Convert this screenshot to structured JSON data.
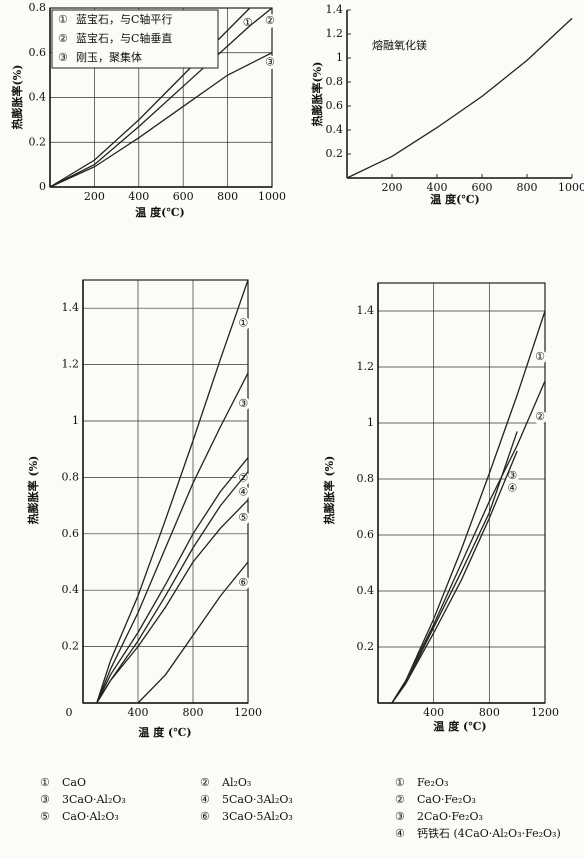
{
  "chart_data": [
    {
      "type": "line",
      "ylabel": "热膨胀率(%)",
      "xlabel": "温 度(℃)",
      "x": [
        0,
        200,
        400,
        600,
        800,
        900,
        1000
      ],
      "xlim": [
        0,
        1000
      ],
      "ylim": [
        0,
        0.8
      ],
      "xticks": [
        200,
        400,
        600,
        800,
        1000
      ],
      "yticks": [
        0,
        0.2,
        0.4,
        0.6,
        0.8
      ],
      "grid": true,
      "series": [
        {
          "label": "①",
          "name": "蓝宝石，与C轴平行",
          "color": "#222",
          "values": [
            0,
            0.12,
            0.3,
            0.5,
            0.7,
            0.8,
            null
          ]
        },
        {
          "label": "②",
          "name": "蓝宝石，与C轴垂直",
          "color": "#222",
          "values": [
            0,
            0.1,
            0.27,
            0.45,
            0.63,
            0.72,
            0.8
          ]
        },
        {
          "label": "③",
          "name": "刚玉，聚集体",
          "color": "#222",
          "values": [
            0,
            0.09,
            0.22,
            0.36,
            0.5,
            0.55,
            0.6
          ]
        }
      ]
    },
    {
      "type": "line",
      "ylabel": "热膨胀率(%)",
      "xlabel": "温 度(℃)",
      "x": [
        0,
        200,
        400,
        600,
        800,
        1000
      ],
      "xlim": [
        0,
        1000
      ],
      "ylim": [
        0,
        1.4
      ],
      "xticks": [
        200,
        400,
        600,
        800,
        1000
      ],
      "yticks": [
        0.2,
        0.4,
        0.6,
        0.8,
        1.0,
        1.2,
        1.4
      ],
      "grid": false,
      "series": [
        {
          "name": "熔融氧化镁",
          "color": "#222",
          "values": [
            0,
            0.18,
            0.42,
            0.68,
            0.98,
            1.33
          ]
        }
      ]
    },
    {
      "type": "line",
      "ylabel": "热膨胀率 (%)",
      "xlabel": "温 度 (℃)",
      "x": [
        100,
        200,
        400,
        600,
        800,
        1000,
        1200
      ],
      "xlim": [
        0,
        1200
      ],
      "ylim": [
        0,
        1.5
      ],
      "xticks": [
        0,
        400,
        800,
        1200
      ],
      "yticks": [
        0.2,
        0.4,
        0.6,
        0.8,
        1.0,
        1.2,
        1.4
      ],
      "grid": true,
      "series": [
        {
          "label": "①",
          "name": "CaO",
          "color": "#222",
          "values": [
            0,
            0.15,
            0.38,
            0.65,
            0.93,
            1.22,
            1.5
          ]
        },
        {
          "label": "②",
          "name": "Al₂O₃",
          "color": "#222",
          "values": [
            0,
            0.1,
            0.25,
            0.42,
            0.6,
            0.75,
            0.87
          ]
        },
        {
          "label": "③",
          "name": "3CaO·Al₂O₃",
          "color": "#222",
          "values": [
            0,
            0.12,
            0.32,
            0.55,
            0.78,
            0.98,
            1.17
          ]
        },
        {
          "label": "④",
          "name": "5CaO·3Al₂O₃",
          "color": "#222",
          "values": [
            0,
            0.08,
            0.22,
            0.38,
            0.55,
            0.7,
            0.82
          ]
        },
        {
          "label": "⑤",
          "name": "CaO·Al₂O₃",
          "color": "#222",
          "values": [
            0,
            0.08,
            0.2,
            0.34,
            0.5,
            0.62,
            0.72
          ]
        },
        {
          "label": "⑥",
          "name": "3CaO·5Al₂O₃",
          "color": "#222",
          "values": [
            null,
            null,
            0,
            0.1,
            0.24,
            0.38,
            0.5
          ]
        }
      ]
    },
    {
      "type": "line",
      "ylabel": "热膨胀率 (%)",
      "xlabel": "温 度 (℃)",
      "x": [
        100,
        200,
        400,
        600,
        800,
        1000,
        1200
      ],
      "xlim": [
        0,
        1200
      ],
      "ylim": [
        0,
        1.5
      ],
      "xticks": [
        400,
        800,
        1200
      ],
      "yticks": [
        0.2,
        0.4,
        0.6,
        0.8,
        1.0,
        1.2,
        1.4
      ],
      "grid": true,
      "series": [
        {
          "label": "①",
          "name": "Fe₂O₃",
          "color": "#222",
          "values": [
            0,
            0.08,
            0.3,
            0.55,
            0.82,
            1.1,
            1.4
          ]
        },
        {
          "label": "②",
          "name": "CaO·Fe₂O₃",
          "color": "#222",
          "values": [
            0,
            0.08,
            0.28,
            0.5,
            0.72,
            0.92,
            1.15
          ]
        },
        {
          "label": "③",
          "name": "2CaO·Fe₂O₃",
          "color": "#222",
          "values": [
            0,
            0.07,
            0.27,
            0.47,
            0.68,
            0.97,
            null
          ]
        },
        {
          "label": "④",
          "name": "钙铁石 (4CaO·Al₂O₃·Fe₂O₃)",
          "color": "#222",
          "values": [
            0,
            0.07,
            0.25,
            0.44,
            0.66,
            0.9,
            null
          ]
        }
      ]
    }
  ]
}
